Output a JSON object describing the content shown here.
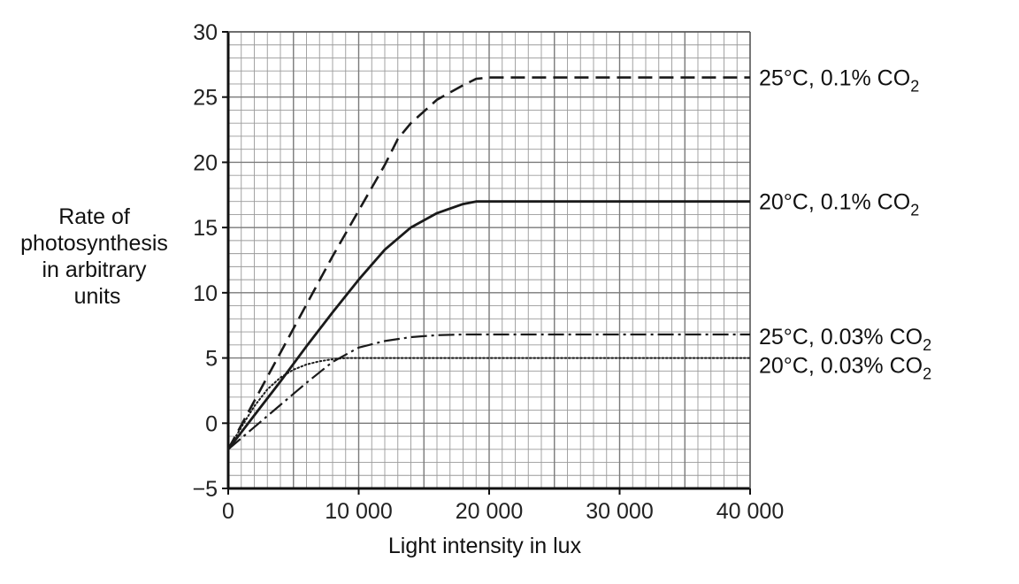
{
  "chart_data": {
    "type": "line",
    "ylabel": [
      "Rate of",
      "photosynthesis",
      "in arbitrary",
      "units"
    ],
    "xlabel": "Light intensity in lux",
    "xlim": [
      0,
      40000
    ],
    "ylim": [
      -5,
      30
    ],
    "x_ticks": [
      0,
      10000,
      20000,
      30000,
      40000
    ],
    "x_tick_labels": [
      "0",
      "10 000",
      "20 000",
      "30 000",
      "40 000"
    ],
    "y_ticks": [
      -5,
      0,
      5,
      10,
      15,
      20,
      25,
      30
    ],
    "y_tick_labels": [
      "−5",
      "0",
      "5",
      "10",
      "15",
      "20",
      "25",
      "30"
    ],
    "grid": true,
    "series": [
      {
        "name": "25°C, 0.1% CO2",
        "label_main": "25°C, 0.1% CO",
        "label_sub": "2",
        "style": "dashed",
        "x": [
          0,
          2000,
          4000,
          6000,
          8000,
          10000,
          12000,
          13000,
          14000,
          16000,
          18000,
          19000,
          20000,
          30000,
          40000
        ],
        "y": [
          -2,
          1.7,
          5.4,
          9.1,
          12.8,
          16.3,
          19.8,
          21.8,
          23.0,
          24.8,
          25.9,
          26.4,
          26.5,
          26.5,
          26.5
        ]
      },
      {
        "name": "20°C, 0.1% CO2",
        "label_main": "20°C, 0.1% CO",
        "label_sub": "2",
        "style": "solid",
        "x": [
          0,
          2000,
          4000,
          6000,
          8000,
          10000,
          12000,
          14000,
          16000,
          18000,
          19000,
          20000,
          30000,
          40000
        ],
        "y": [
          -2,
          0.6,
          3.2,
          5.9,
          8.5,
          11.0,
          13.3,
          15.0,
          16.1,
          16.8,
          17.0,
          17.0,
          17.0,
          17.0
        ]
      },
      {
        "name": "25°C, 0.03% CO2",
        "label_main": "25°C, 0.03% CO",
        "label_sub": "2",
        "style": "dashdot",
        "x": [
          0,
          2000,
          4000,
          6000,
          8000,
          10000,
          12000,
          14000,
          16000,
          18000,
          20000,
          30000,
          40000
        ],
        "y": [
          -2,
          -0.3,
          1.4,
          3.1,
          4.7,
          5.8,
          6.3,
          6.6,
          6.75,
          6.8,
          6.8,
          6.8,
          6.8
        ]
      },
      {
        "name": "20°C, 0.03% CO2",
        "label_main": "20°C, 0.03% CO",
        "label_sub": "2",
        "style": "dotted",
        "x": [
          0,
          1000,
          2000,
          3000,
          4000,
          5000,
          6000,
          7000,
          8000,
          9000,
          10000,
          20000,
          30000,
          40000
        ],
        "y": [
          -2,
          -0.3,
          1.3,
          2.6,
          3.5,
          4.1,
          4.5,
          4.75,
          4.9,
          5.0,
          5.0,
          5.0,
          5.0,
          5.0
        ]
      }
    ]
  }
}
